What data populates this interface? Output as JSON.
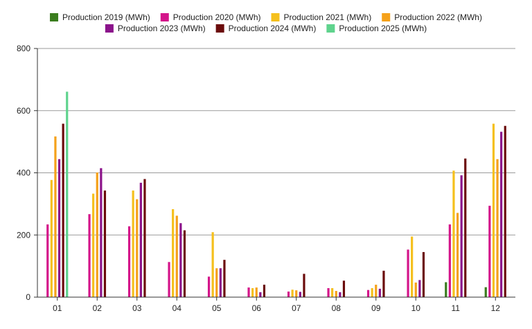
{
  "chart_data": {
    "type": "bar",
    "categories": [
      "01",
      "02",
      "03",
      "04",
      "05",
      "06",
      "07",
      "08",
      "09",
      "10",
      "11",
      "12"
    ],
    "ylim": [
      0,
      800
    ],
    "yticks": [
      0,
      200,
      400,
      600,
      800
    ],
    "grid": true,
    "legend_position": "top-center",
    "series": [
      {
        "name": "Production 2019 (MWh)",
        "color": "#3a7d1e",
        "values": [
          null,
          null,
          null,
          null,
          null,
          null,
          null,
          null,
          null,
          null,
          48,
          32
        ]
      },
      {
        "name": "Production 2020 (MWh)",
        "color": "#d4158a",
        "values": [
          234,
          267,
          228,
          113,
          66,
          31,
          18,
          29,
          23,
          153,
          234,
          294
        ]
      },
      {
        "name": "Production 2021 (MWh)",
        "color": "#f5c01d",
        "values": [
          377,
          333,
          343,
          283,
          209,
          29,
          24,
          29,
          29,
          195,
          407,
          558
        ]
      },
      {
        "name": "Production 2022 (MWh)",
        "color": "#f5a11a",
        "values": [
          517,
          401,
          315,
          262,
          93,
          31,
          22,
          20,
          40,
          47,
          271,
          444
        ]
      },
      {
        "name": "Production 2023 (MWh)",
        "color": "#8b138b",
        "values": [
          444,
          415,
          368,
          238,
          93,
          16,
          17,
          16,
          27,
          55,
          392,
          532
        ]
      },
      {
        "name": "Production 2024 (MWh)",
        "color": "#6b0b0b",
        "values": [
          558,
          343,
          380,
          215,
          120,
          40,
          75,
          53,
          85,
          145,
          446,
          551
        ]
      },
      {
        "name": "Production 2025 (MWh)",
        "color": "#5fd38d",
        "values": [
          661,
          null,
          null,
          null,
          null,
          null,
          null,
          null,
          null,
          null,
          null,
          null
        ]
      }
    ]
  }
}
